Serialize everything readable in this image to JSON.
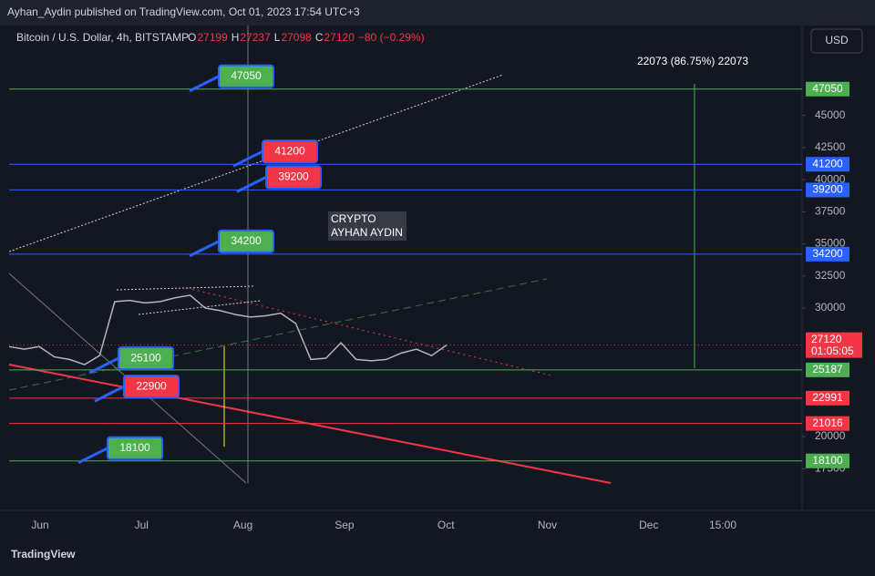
{
  "header": {
    "publisher": "Ayhan_Aydin published on TradingView.com, Oct 01, 2023 17:54 UTC+3",
    "symbol": "Bitcoin / U.S. Dollar, 4h, BITSTAMP",
    "ohlc": [
      {
        "key": "O",
        "value": "27199"
      },
      {
        "key": "H",
        "value": "27237"
      },
      {
        "key": "L",
        "value": "27098"
      },
      {
        "key": "C",
        "value": "27120"
      }
    ],
    "change": "−80 (−0.29%)",
    "currency": "USD"
  },
  "footer": {
    "brand": "TradingView"
  },
  "chart_data": {
    "type": "line",
    "color": "#b2b5be",
    "values": [
      27000,
      26800,
      27000,
      26200,
      26000,
      25600,
      26300,
      30500,
      30600,
      30400,
      30500,
      30800,
      31000,
      30000,
      29800,
      29500,
      29300,
      29400,
      29600,
      28800,
      26000,
      26100,
      27300,
      26000,
      25900,
      26000,
      26500,
      26800,
      26300,
      27120
    ],
    "ylim": [
      14250,
      52000
    ],
    "yticks": [
      45000,
      42500,
      40000,
      37500,
      35000,
      32500,
      30000,
      20000,
      17500
    ],
    "xticks": [
      "Jun",
      "Jul",
      "Aug",
      "Sep",
      "Oct",
      "Nov",
      "Dec",
      "15:00"
    ],
    "levels": [
      {
        "value": 47050,
        "color": "#4caf50"
      },
      {
        "value": 41200,
        "color": "#2962ff"
      },
      {
        "value": 39200,
        "color": "#2962ff"
      },
      {
        "value": 34200,
        "color": "#2962ff"
      },
      {
        "value": 25187,
        "color": "#4caf50"
      },
      {
        "value": 22991,
        "color": "#f23645"
      },
      {
        "value": 21016,
        "color": "#f23645"
      },
      {
        "value": 18100,
        "color": "#4caf50"
      }
    ],
    "last_price": {
      "value": 27120,
      "countdown": "01:05:05",
      "color": "#f23645"
    },
    "callouts": [
      {
        "value": 47050,
        "color": "#4caf50"
      },
      {
        "value": 41200,
        "color": "#f23645"
      },
      {
        "value": 39200,
        "color": "#f23645"
      },
      {
        "value": 34200,
        "color": "#4caf50"
      },
      {
        "value": 25100,
        "color": "#4caf50"
      },
      {
        "value": 22900,
        "color": "#f23645"
      },
      {
        "value": 18100,
        "color": "#4caf50"
      }
    ],
    "annotations": {
      "watermark": [
        "CRYPTO",
        "AYHAN AYDIN"
      ],
      "measure": "22073 (86.75%) 22073"
    }
  }
}
